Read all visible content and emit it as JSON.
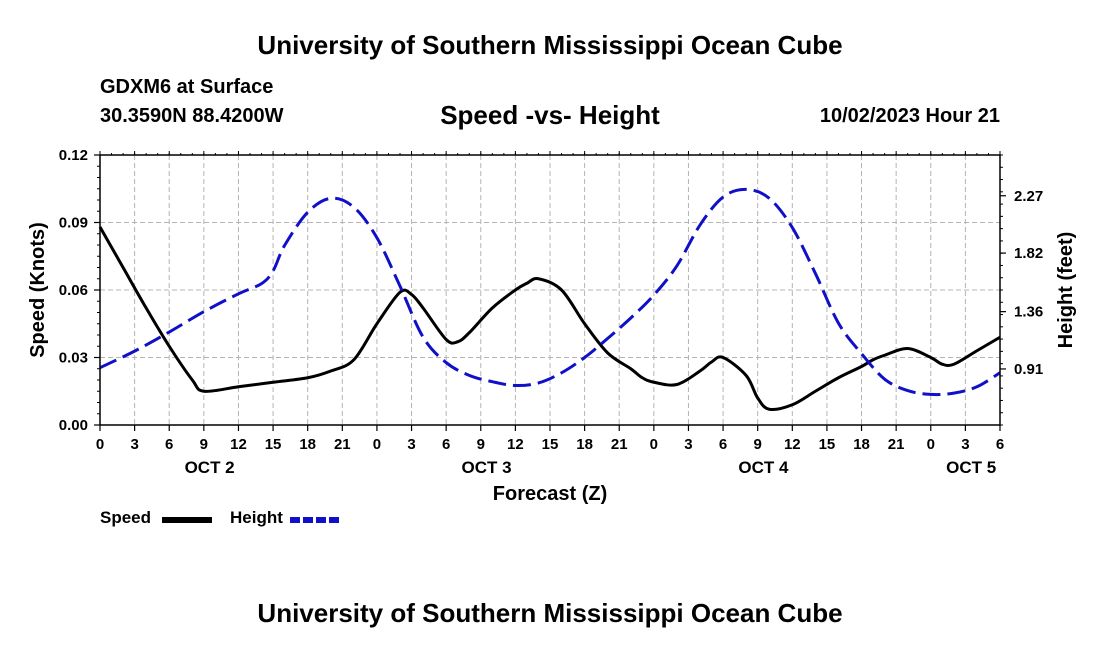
{
  "header": {
    "title": "University of Southern Mississippi Ocean Cube",
    "station": "GDXM6 at Surface",
    "coords": "30.3590N  88.4200W",
    "subtitle": "Speed -vs- Height",
    "datetime": "10/02/2023 Hour 21"
  },
  "footer": {
    "title": "University of Southern Mississippi Ocean Cube"
  },
  "legend": {
    "speed_label": "Speed",
    "height_label": "Height"
  },
  "colors": {
    "speed": "#000000",
    "height": "#1010c8",
    "grid": "#b4b4b4"
  },
  "chart_data": {
    "type": "line",
    "xlabel": "Forecast (Z)",
    "ylabel": "Speed (Knots)",
    "y2label": "Height (feet)",
    "xlim": [
      0,
      78
    ],
    "ylim": [
      0,
      0.12
    ],
    "y2lim": [
      0.47,
      2.59
    ],
    "x_ticks": [
      0,
      3,
      6,
      9,
      12,
      15,
      18,
      21,
      24,
      27,
      30,
      33,
      36,
      39,
      42,
      45,
      48,
      51,
      54,
      57,
      60,
      63,
      66,
      69,
      72,
      75,
      78
    ],
    "x_tick_labels": [
      "0",
      "3",
      "6",
      "9",
      "12",
      "15",
      "18",
      "21",
      "0",
      "3",
      "6",
      "9",
      "12",
      "15",
      "18",
      "21",
      "0",
      "3",
      "6",
      "9",
      "12",
      "15",
      "18",
      "21",
      "0",
      "3",
      "6"
    ],
    "day_labels": [
      {
        "x": 9.5,
        "label": "OCT 2"
      },
      {
        "x": 33.5,
        "label": "OCT 3"
      },
      {
        "x": 57.5,
        "label": "OCT 4"
      },
      {
        "x": 75.5,
        "label": "OCT 5"
      }
    ],
    "y_ticks": [
      0,
      0.03,
      0.06,
      0.09,
      0.12
    ],
    "y_tick_labels": [
      "0.00",
      "0.03",
      "0.06",
      "0.09",
      "0.12"
    ],
    "y2_ticks": [
      0.91,
      1.36,
      1.82,
      2.27
    ],
    "y2_tick_labels": [
      "0.91",
      "1.36",
      "1.82",
      "2.27"
    ],
    "grid": true,
    "series": [
      {
        "name": "Speed",
        "axis": "left",
        "style": "solid",
        "x": [
          0,
          2,
          4,
          6,
          8,
          9,
          12,
          15,
          18,
          20,
          22,
          24,
          26,
          27,
          28,
          30,
          31,
          32,
          34,
          36,
          37,
          38,
          40,
          42,
          44,
          46,
          47,
          48,
          50,
          52,
          53,
          54,
          56,
          57,
          58,
          60,
          62,
          64,
          66,
          67,
          68,
          70,
          72,
          73,
          74,
          76,
          78
        ],
        "values": [
          0.088,
          0.07,
          0.052,
          0.035,
          0.02,
          0.015,
          0.017,
          0.019,
          0.021,
          0.024,
          0.029,
          0.045,
          0.059,
          0.058,
          0.052,
          0.038,
          0.037,
          0.041,
          0.052,
          0.06,
          0.063,
          0.065,
          0.06,
          0.045,
          0.032,
          0.025,
          0.021,
          0.019,
          0.018,
          0.024,
          0.028,
          0.03,
          0.022,
          0.012,
          0.007,
          0.009,
          0.015,
          0.021,
          0.026,
          0.029,
          0.031,
          0.034,
          0.03,
          0.027,
          0.027,
          0.033,
          0.039
        ]
      },
      {
        "name": "Height",
        "axis": "right",
        "style": "dashed",
        "x": [
          0,
          3,
          6,
          9,
          12,
          14,
          15,
          16,
          18,
          20,
          22,
          24,
          26,
          28,
          30,
          32,
          34,
          36,
          38,
          40,
          42,
          44,
          46,
          48,
          50,
          52,
          54,
          56,
          58,
          60,
          62,
          64,
          66,
          68,
          70,
          72,
          74,
          76,
          78
        ],
        "values": [
          0.92,
          1.05,
          1.2,
          1.36,
          1.5,
          1.58,
          1.68,
          1.88,
          2.14,
          2.25,
          2.18,
          1.94,
          1.56,
          1.16,
          0.96,
          0.86,
          0.81,
          0.78,
          0.8,
          0.88,
          1.0,
          1.15,
          1.31,
          1.49,
          1.72,
          2.04,
          2.26,
          2.32,
          2.25,
          2.02,
          1.66,
          1.27,
          1.03,
          0.83,
          0.74,
          0.71,
          0.72,
          0.77,
          0.88
        ]
      }
    ]
  }
}
